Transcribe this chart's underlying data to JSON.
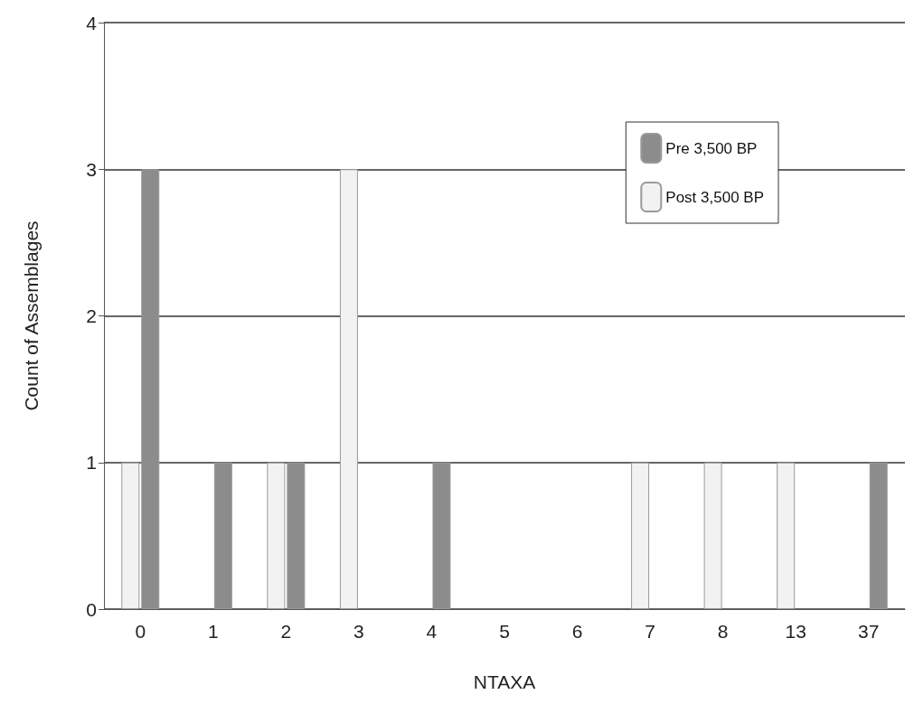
{
  "chart_data": {
    "type": "bar",
    "xlabel": "NTAXA",
    "ylabel": "Count of Assemblages",
    "categories": [
      "0",
      "1",
      "2",
      "3",
      "4",
      "5",
      "6",
      "7",
      "8",
      "13",
      "37"
    ],
    "series": [
      {
        "name": "Post 3,500 BP",
        "color": "#f2f2f2",
        "values": [
          1,
          0,
          1,
          3,
          0,
          0,
          0,
          1,
          1,
          1,
          0
        ]
      },
      {
        "name": "Pre 3,500 BP",
        "color": "#8c8c8c",
        "values": [
          3,
          1,
          1,
          0,
          1,
          0,
          0,
          0,
          0,
          0,
          1
        ]
      }
    ],
    "ylim": [
      0,
      4
    ],
    "yticks": [
      0,
      1,
      2,
      3,
      4
    ],
    "grid": "y",
    "legend": "top right"
  }
}
